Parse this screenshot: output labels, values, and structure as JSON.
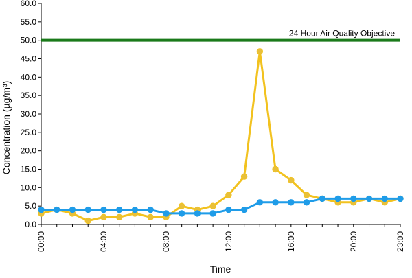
{
  "chart_data": {
    "type": "line",
    "xlabel": "Time",
    "ylabel": "Concentration (µg/m³)",
    "ylim": [
      0,
      60
    ],
    "y_ticks": [
      "0.0",
      "5.0",
      "10.0",
      "15.0",
      "20.0",
      "25.0",
      "30.0",
      "35.0",
      "40.0",
      "45.0",
      "50.0",
      "55.0",
      "60.0"
    ],
    "x_ticks": [
      "00:00",
      "04:00",
      "08:00",
      "12:00",
      "16:00",
      "20:00",
      "23:00"
    ],
    "x_tick_hours": [
      0,
      4,
      8,
      12,
      16,
      20,
      23
    ],
    "x": [
      0,
      1,
      2,
      3,
      4,
      5,
      6,
      7,
      8,
      9,
      10,
      11,
      12,
      13,
      14,
      15,
      16,
      17,
      18,
      19,
      20,
      21,
      22,
      23
    ],
    "series": [
      {
        "color": "#f2c21f",
        "marker_color": "#e8c03a",
        "values": [
          3,
          4,
          3,
          1,
          2,
          2,
          3,
          2,
          2,
          5,
          4,
          5,
          8,
          13,
          47,
          15,
          12,
          8,
          7,
          6,
          6,
          7,
          6,
          7
        ]
      },
      {
        "color": "#1f9ce8",
        "marker_color": "#1f9ce8",
        "values": [
          4,
          4,
          4,
          4,
          4,
          4,
          4,
          4,
          3,
          3,
          3,
          3,
          4,
          4,
          6,
          6,
          6,
          6,
          7,
          7,
          7,
          7,
          7,
          7
        ]
      }
    ],
    "reference_line": {
      "value": 50,
      "label": "24 Hour Air Quality Objective",
      "color": "#1a7a1a"
    },
    "grid": false,
    "legend": "none"
  }
}
